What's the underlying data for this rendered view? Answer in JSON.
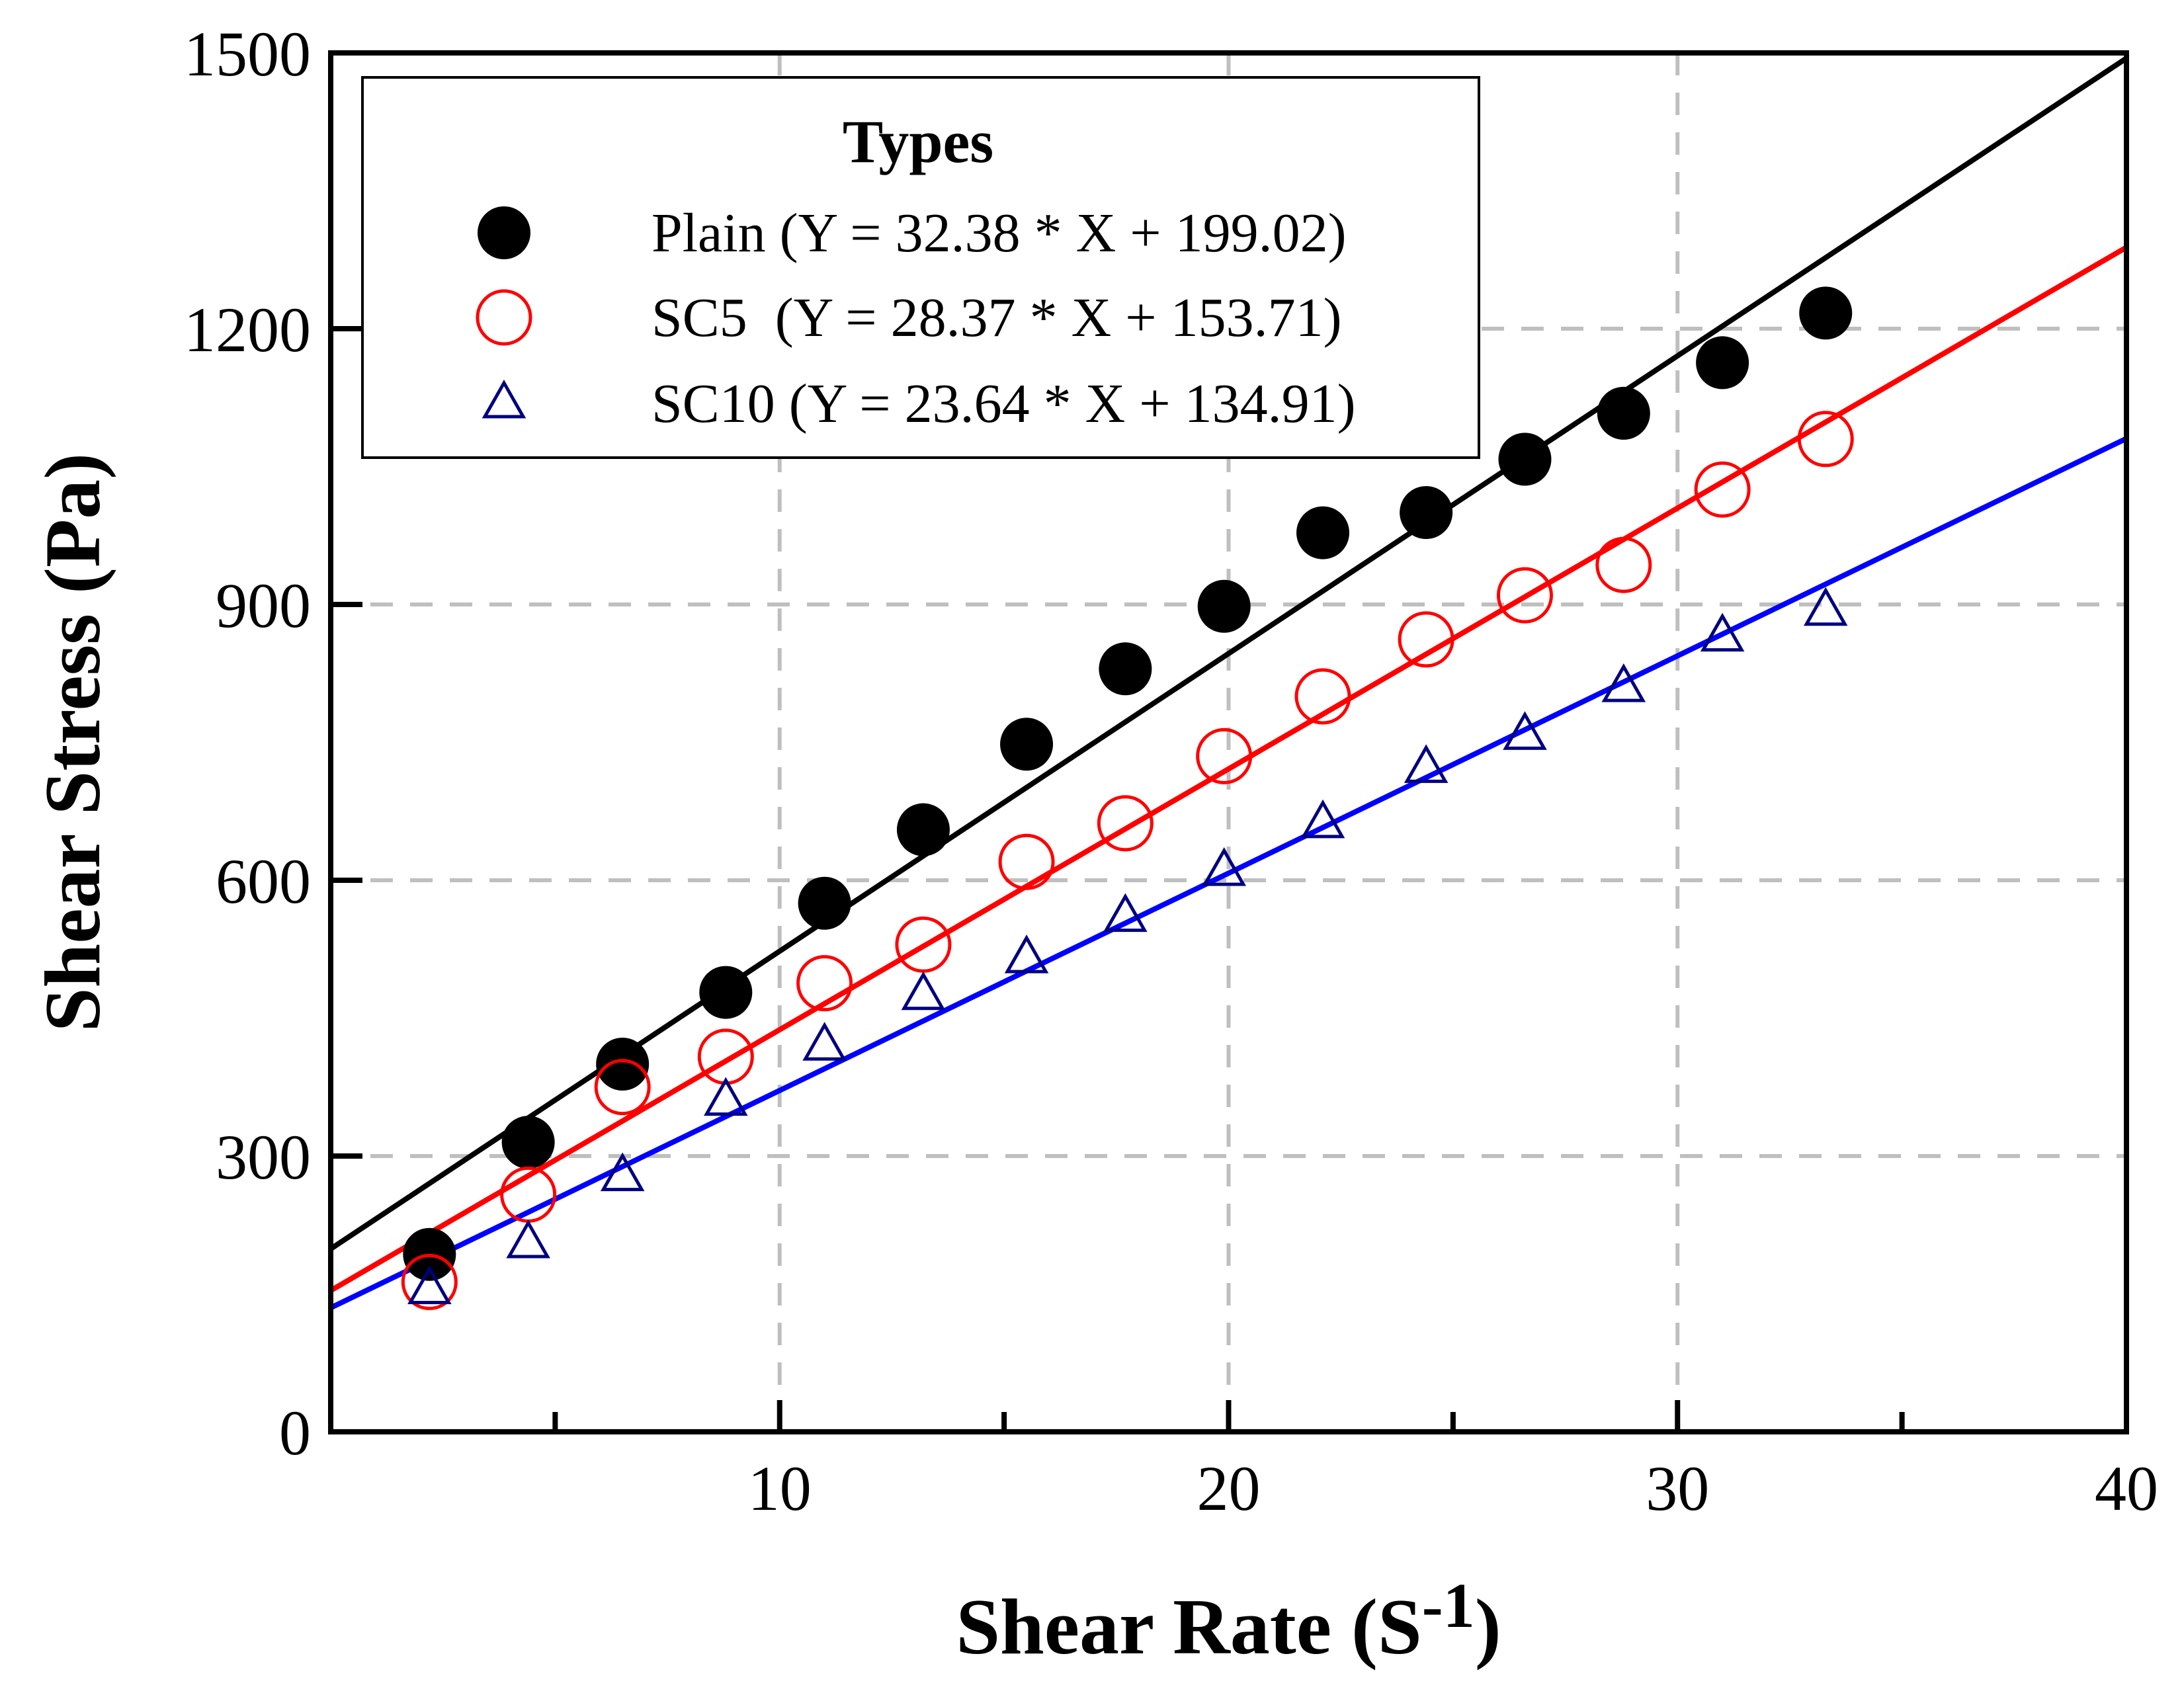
{
  "chart_data": {
    "type": "scatter",
    "title": "",
    "xlabel": "Shear Rate (S-1)",
    "xlabel_main": "Shear Rate (S",
    "xlabel_sup": "-1",
    "xlabel_close": ")",
    "ylabel": "Shear Stress (Pa)",
    "xlim": [
      0,
      40
    ],
    "ylim": [
      0,
      1500
    ],
    "xticks": [
      10,
      20,
      30,
      40
    ],
    "xtick_labels": [
      "10",
      "20",
      "30",
      "40"
    ],
    "xminor_ticks": [
      5,
      15,
      25,
      35
    ],
    "yticks": [
      0,
      300,
      600,
      900,
      1200,
      1500
    ],
    "ytick_labels": [
      "0",
      "300",
      "600",
      "900",
      "1200",
      "1500"
    ],
    "grid": true,
    "grid_color": "#bfbfbf",
    "legend_placement": "top-left",
    "legend_title": "Types",
    "series": [
      {
        "name": "Plain",
        "legend_label": "Plain (Y = 32.38 * X + 199.02)",
        "marker": "filled-circle",
        "marker_color": "#000000",
        "line_color": "#000000",
        "fit": {
          "slope": 32.38,
          "intercept": 199.02
        },
        "x": [
          2.2,
          4.4,
          6.5,
          8.8,
          11.0,
          13.2,
          15.5,
          17.7,
          19.9,
          22.1,
          24.4,
          26.6,
          28.8,
          31.0,
          33.3
        ],
        "y": [
          193,
          315,
          400,
          478,
          575,
          655,
          748,
          830,
          898,
          978,
          1000,
          1058,
          1108,
          1163,
          1217
        ]
      },
      {
        "name": "SC5",
        "legend_label": "SC5  (Y = 28.37 * X + 153.71)",
        "marker": "open-circle",
        "marker_color": "#ff0000",
        "line_color": "#ff0000",
        "fit": {
          "slope": 28.37,
          "intercept": 153.71
        },
        "x": [
          2.2,
          4.4,
          6.5,
          8.8,
          11.0,
          13.2,
          15.5,
          17.7,
          19.9,
          22.1,
          24.4,
          26.6,
          28.8,
          31.0,
          33.3
        ],
        "y": [
          163,
          258,
          375,
          408,
          488,
          530,
          620,
          662,
          735,
          800,
          862,
          910,
          943,
          1025,
          1080
        ]
      },
      {
        "name": "SC10",
        "legend_label": "SC10 (Y = 23.64 * X + 134.91)",
        "marker": "open-triangle",
        "marker_color": "#000080",
        "line_color": "#0000ff",
        "fit": {
          "slope": 23.64,
          "intercept": 134.91
        },
        "x": [
          2.2,
          4.4,
          6.5,
          8.8,
          11.0,
          13.2,
          15.5,
          17.7,
          19.9,
          22.1,
          24.4,
          26.6,
          28.8,
          31.0,
          33.3
        ],
        "y": [
          155,
          205,
          278,
          360,
          420,
          475,
          515,
          560,
          610,
          662,
          722,
          758,
          810,
          865,
          893
        ]
      }
    ]
  }
}
